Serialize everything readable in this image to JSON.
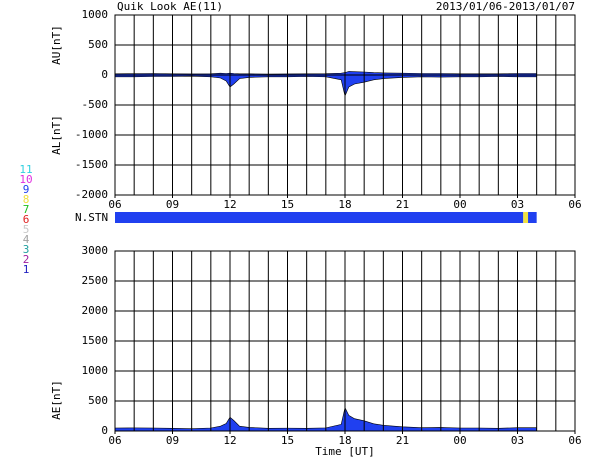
{
  "chart_data": [
    {
      "type": "area",
      "title": "Quik Look AE(11)",
      "subtitle": "2013/01/06-2013/01/07",
      "ylabels": [
        "AU[nT]",
        "AL[nT]"
      ],
      "x": [
        0,
        1,
        2,
        3,
        4,
        5,
        5.5,
        5.8,
        6.0,
        6.2,
        6.5,
        7,
        8,
        9,
        10,
        11,
        11.8,
        12.0,
        12.2,
        12.5,
        13,
        13.5,
        14,
        15,
        16,
        17,
        18,
        19,
        20,
        21,
        22
      ],
      "series": [
        {
          "name": "AU",
          "color": "#2040f0",
          "values": [
            20,
            22,
            25,
            20,
            18,
            20,
            30,
            25,
            30,
            25,
            20,
            20,
            15,
            18,
            20,
            22,
            30,
            40,
            60,
            55,
            50,
            40,
            35,
            30,
            25,
            25,
            20,
            20,
            20,
            25,
            25
          ]
        },
        {
          "name": "AL",
          "color": "#2040f0",
          "values": [
            -30,
            -30,
            -25,
            -25,
            -20,
            -30,
            -50,
            -100,
            -200,
            -150,
            -60,
            -40,
            -30,
            -30,
            -25,
            -30,
            -80,
            -350,
            -200,
            -150,
            -120,
            -80,
            -60,
            -40,
            -30,
            -35,
            -30,
            -30,
            -25,
            -30,
            -30
          ]
        }
      ],
      "xlim": [
        0,
        24
      ],
      "xticks": [
        {
          "value": 0,
          "label": "06"
        },
        {
          "value": 3,
          "label": "09"
        },
        {
          "value": 6,
          "label": "12"
        },
        {
          "value": 9,
          "label": "15"
        },
        {
          "value": 12,
          "label": "18"
        },
        {
          "value": 15,
          "label": "21"
        },
        {
          "value": 18,
          "label": "00"
        },
        {
          "value": 21,
          "label": "03"
        },
        {
          "value": 24,
          "label": "06"
        }
      ],
      "xgrid": [
        0,
        1,
        2,
        3,
        4,
        5,
        6,
        7,
        8,
        9,
        10,
        11,
        12,
        13,
        14,
        15,
        16,
        17,
        18,
        19,
        20,
        21,
        22,
        23,
        24
      ],
      "ylim": [
        -2000,
        1000
      ],
      "yticks": [
        1000,
        500,
        0,
        -500,
        -1000,
        -1500,
        -2000
      ]
    },
    {
      "type": "area",
      "ylabel": "AE[nT]",
      "xlabel": "Time [UT]",
      "x": [
        0,
        1,
        2,
        3,
        4,
        5,
        5.5,
        5.8,
        6.0,
        6.2,
        6.5,
        7,
        8,
        9,
        10,
        11,
        11.8,
        12.0,
        12.2,
        12.5,
        13,
        13.5,
        14,
        15,
        16,
        17,
        18,
        19,
        20,
        21,
        22
      ],
      "series": [
        {
          "name": "AE",
          "color": "#2040f0",
          "values": [
            50,
            52,
            50,
            45,
            38,
            50,
            80,
            125,
            230,
            175,
            80,
            60,
            45,
            48,
            45,
            52,
            110,
            390,
            260,
            205,
            170,
            120,
            95,
            70,
            55,
            60,
            50,
            50,
            45,
            55,
            55
          ]
        }
      ],
      "xlim": [
        0,
        24
      ],
      "xticks": [
        {
          "value": 0,
          "label": "06"
        },
        {
          "value": 3,
          "label": "09"
        },
        {
          "value": 6,
          "label": "12"
        },
        {
          "value": 9,
          "label": "15"
        },
        {
          "value": 12,
          "label": "18"
        },
        {
          "value": 15,
          "label": "21"
        },
        {
          "value": 18,
          "label": "00"
        },
        {
          "value": 21,
          "label": "03"
        },
        {
          "value": 24,
          "label": "06"
        }
      ],
      "xgrid": [
        0,
        1,
        2,
        3,
        4,
        5,
        6,
        7,
        8,
        9,
        10,
        11,
        12,
        13,
        14,
        15,
        16,
        17,
        18,
        19,
        20,
        21,
        22,
        23,
        24
      ],
      "ylim": [
        0,
        3000
      ],
      "yticks": [
        3000,
        2500,
        2000,
        1500,
        1000,
        500,
        0
      ]
    }
  ],
  "nstn": {
    "label": "N.STN",
    "segments": [
      {
        "x_start": 0,
        "x_end": 21.3,
        "value": 9
      },
      {
        "x_start": 21.3,
        "x_end": 21.55,
        "value": 8
      },
      {
        "x_start": 21.55,
        "x_end": 22,
        "value": 9
      }
    ]
  },
  "station_legend": [
    {
      "label": "11",
      "value": 11,
      "color": "#30d0e0"
    },
    {
      "label": "10",
      "value": 10,
      "color": "#e030e0"
    },
    {
      "label": "9",
      "value": 9,
      "color": "#2040f0"
    },
    {
      "label": "8",
      "value": 8,
      "color": "#f0e040"
    },
    {
      "label": "7",
      "value": 7,
      "color": "#20c020"
    },
    {
      "label": "6",
      "value": 6,
      "color": "#e02020"
    },
    {
      "label": "5",
      "value": 5,
      "color": "#c8c8c8"
    },
    {
      "label": "4",
      "value": 4,
      "color": "#a0a0a0"
    },
    {
      "label": "3",
      "value": 3,
      "color": "#20a0a0"
    },
    {
      "label": "2",
      "value": 2,
      "color": "#a020a0"
    },
    {
      "label": "1",
      "value": 1,
      "color": "#2020c0"
    }
  ]
}
